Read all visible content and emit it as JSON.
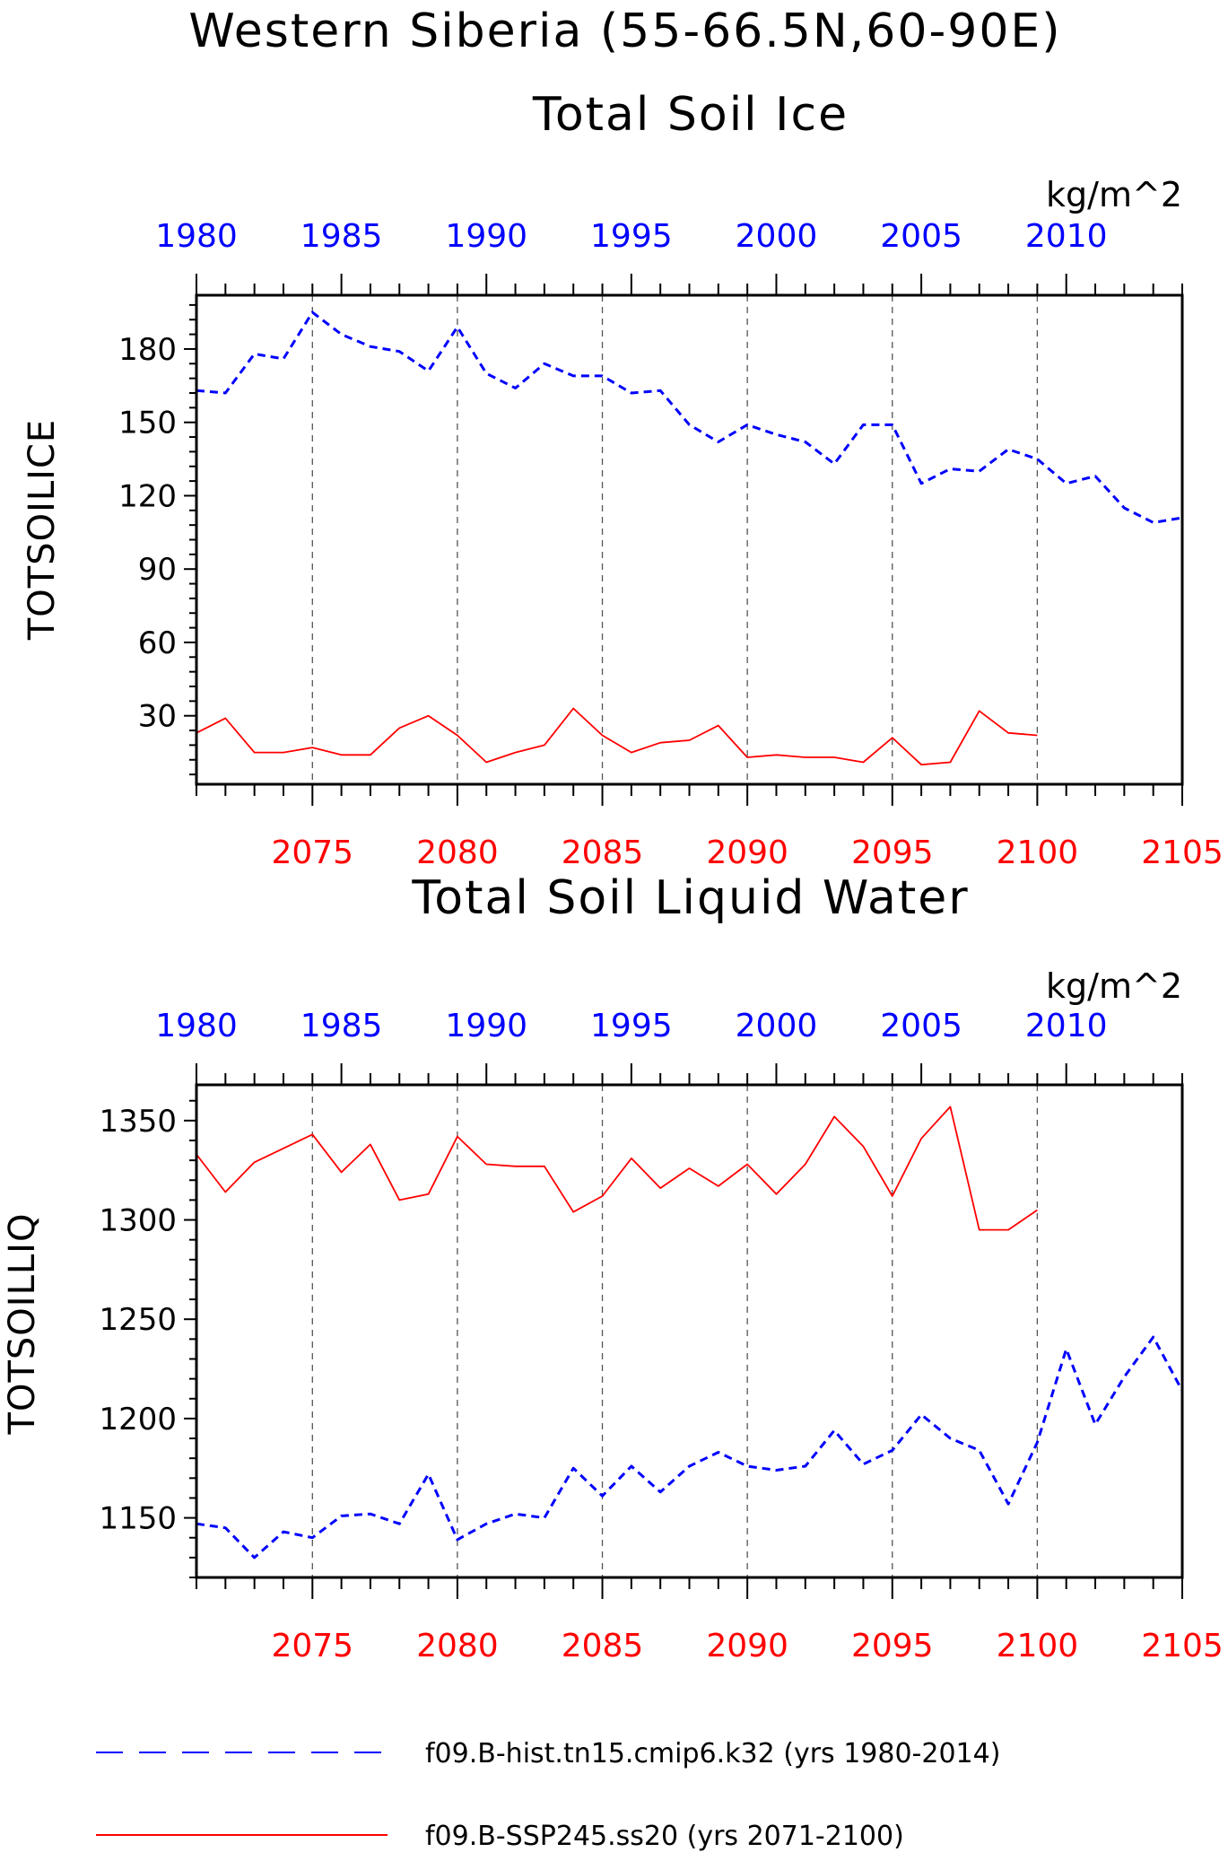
{
  "figure": {
    "title_line1": "Western Siberia (55-66.5N,60-90E)",
    "title_line2": "Total Soil Ice",
    "panel2_title": "Total Soil Liquid Water"
  },
  "legend": {
    "entries": [
      {
        "label": "f09.B-hist.tn15.cmip6.k32 (yrs 1980-2014)",
        "color": "#0000ff",
        "style": "dashed"
      },
      {
        "label": "f09.B-SSP245.ss20 (yrs 2071-2100)",
        "color": "#ff0000",
        "style": "solid"
      }
    ]
  },
  "chart_data": [
    {
      "type": "line",
      "title": "Total Soil Ice",
      "ylabel": "TOTSOILICE",
      "units": "kg/m^2",
      "ylim": [
        2,
        202
      ],
      "yticks": [
        30,
        60,
        90,
        120,
        150,
        180
      ],
      "top_axis": {
        "color": "#0000ff",
        "range": [
          1980,
          2014
        ],
        "tick_labels": [
          "1980",
          "1985",
          "1990",
          "1995",
          "2000",
          "2005",
          "2010"
        ]
      },
      "bottom_axis": {
        "color": "#ff0000",
        "range": [
          2071,
          2105
        ],
        "tick_labels": [
          "2075",
          "2080",
          "2085",
          "2090",
          "2095",
          "2100",
          "2105"
        ]
      },
      "grid_x": [
        2075,
        2080,
        2085,
        2090,
        2095,
        2100
      ],
      "series": [
        {
          "name": "f09.B-hist.tn15.cmip6.k32 (yrs 1980-2014)",
          "axis": "top",
          "color": "#0000ff",
          "style": "dashed",
          "x": [
            1980,
            1981,
            1982,
            1983,
            1984,
            1985,
            1986,
            1987,
            1988,
            1989,
            1990,
            1991,
            1992,
            1993,
            1994,
            1995,
            1996,
            1997,
            1998,
            1999,
            2000,
            2001,
            2002,
            2003,
            2004,
            2005,
            2006,
            2007,
            2008,
            2009,
            2010,
            2011,
            2012,
            2013,
            2014
          ],
          "values": [
            163,
            162,
            178,
            176,
            195,
            186,
            181,
            179,
            171,
            189,
            170,
            164,
            174,
            169,
            169,
            162,
            163,
            149,
            142,
            149,
            145,
            142,
            133,
            149,
            149,
            125,
            131,
            130,
            139,
            135,
            125,
            128,
            115,
            109,
            111
          ]
        },
        {
          "name": "f09.B-SSP245.ss20 (yrs 2071-2100)",
          "axis": "bottom",
          "color": "#ff0000",
          "style": "solid",
          "x": [
            2071,
            2072,
            2073,
            2074,
            2075,
            2076,
            2077,
            2078,
            2079,
            2080,
            2081,
            2082,
            2083,
            2084,
            2085,
            2086,
            2087,
            2088,
            2089,
            2090,
            2091,
            2092,
            2093,
            2094,
            2095,
            2096,
            2097,
            2098,
            2099,
            2100
          ],
          "values": [
            23,
            29,
            15,
            15,
            17,
            14,
            14,
            25,
            30,
            22,
            11,
            15,
            18,
            33,
            22,
            15,
            19,
            20,
            26,
            13,
            14,
            13,
            13,
            11,
            21,
            10,
            11,
            32,
            23,
            22
          ]
        }
      ]
    },
    {
      "type": "line",
      "title": "Total Soil Liquid Water",
      "ylabel": "TOTSOILLIQ",
      "units": "kg/m^2",
      "ylim": [
        1120,
        1368
      ],
      "yticks": [
        1150,
        1200,
        1250,
        1300,
        1350
      ],
      "top_axis": {
        "color": "#0000ff",
        "range": [
          1980,
          2014
        ],
        "tick_labels": [
          "1980",
          "1985",
          "1990",
          "1995",
          "2000",
          "2005",
          "2010"
        ]
      },
      "bottom_axis": {
        "color": "#ff0000",
        "range": [
          2071,
          2105
        ],
        "tick_labels": [
          "2075",
          "2080",
          "2085",
          "2090",
          "2095",
          "2100",
          "2105"
        ]
      },
      "grid_x": [
        2075,
        2080,
        2085,
        2090,
        2095,
        2100
      ],
      "series": [
        {
          "name": "f09.B-hist.tn15.cmip6.k32 (yrs 1980-2014)",
          "axis": "top",
          "color": "#0000ff",
          "style": "dashed",
          "x": [
            1980,
            1981,
            1982,
            1983,
            1984,
            1985,
            1986,
            1987,
            1988,
            1989,
            1990,
            1991,
            1992,
            1993,
            1994,
            1995,
            1996,
            1997,
            1998,
            1999,
            2000,
            2001,
            2002,
            2003,
            2004,
            2005,
            2006,
            2007,
            2008,
            2009,
            2010,
            2011,
            2012,
            2013,
            2014
          ],
          "values": [
            1147,
            1145,
            1130,
            1143,
            1140,
            1151,
            1152,
            1147,
            1172,
            1139,
            1147,
            1152,
            1150,
            1175,
            1161,
            1176,
            1163,
            1176,
            1183,
            1176,
            1174,
            1176,
            1194,
            1177,
            1184,
            1202,
            1190,
            1184,
            1157,
            1188,
            1235,
            1197,
            1221,
            1241,
            1214
          ]
        },
        {
          "name": "f09.B-SSP245.ss20 (yrs 2071-2100)",
          "axis": "bottom",
          "color": "#ff0000",
          "style": "solid",
          "x": [
            2071,
            2072,
            2073,
            2074,
            2075,
            2076,
            2077,
            2078,
            2079,
            2080,
            2081,
            2082,
            2083,
            2084,
            2085,
            2086,
            2087,
            2088,
            2089,
            2090,
            2091,
            2092,
            2093,
            2094,
            2095,
            2096,
            2097,
            2098,
            2099,
            2100
          ],
          "values": [
            1333,
            1314,
            1329,
            1336,
            1343,
            1324,
            1338,
            1310,
            1313,
            1342,
            1328,
            1327,
            1327,
            1304,
            1312,
            1331,
            1316,
            1326,
            1317,
            1328,
            1313,
            1328,
            1352,
            1337,
            1312,
            1341,
            1357,
            1295,
            1295,
            1305
          ]
        }
      ]
    }
  ]
}
